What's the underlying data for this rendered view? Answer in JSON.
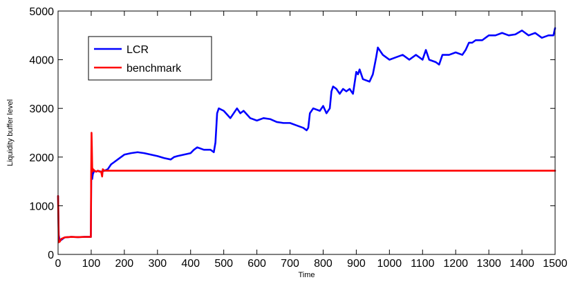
{
  "chart_data": {
    "type": "line",
    "title": "",
    "xlabel": "Time",
    "ylabel": "Liquidity buffer level",
    "xlim": [
      0,
      1500
    ],
    "ylim": [
      0,
      5000
    ],
    "xticks": [
      "0",
      "100",
      "200",
      "300",
      "400",
      "500",
      "600",
      "700",
      "800",
      "900",
      "1000",
      "1100",
      "1200",
      "1300",
      "1400",
      "1500"
    ],
    "yticks": [
      "0",
      "1000",
      "2000",
      "3000",
      "4000",
      "5000"
    ],
    "grid": false,
    "legend_position": "top-left",
    "series": [
      {
        "name": "LCR",
        "color": "#0000ff",
        "x": [
          0,
          2,
          5,
          10,
          20,
          40,
          60,
          80,
          99,
          100,
          101,
          102,
          103,
          105,
          108,
          110,
          115,
          120,
          130,
          140,
          150,
          160,
          170,
          180,
          190,
          200,
          220,
          240,
          260,
          280,
          300,
          320,
          340,
          350,
          360,
          380,
          400,
          410,
          420,
          440,
          460,
          470,
          475,
          480,
          485,
          500,
          520,
          540,
          550,
          560,
          580,
          600,
          620,
          640,
          660,
          680,
          700,
          720,
          740,
          750,
          755,
          760,
          770,
          790,
          800,
          810,
          820,
          825,
          830,
          840,
          850,
          860,
          870,
          880,
          890,
          900,
          905,
          910,
          920,
          940,
          950,
          960,
          965,
          970,
          980,
          1000,
          1020,
          1040,
          1060,
          1080,
          1100,
          1110,
          1120,
          1140,
          1150,
          1160,
          1180,
          1200,
          1220,
          1230,
          1240,
          1250,
          1260,
          1280,
          1290,
          1300,
          1320,
          1340,
          1360,
          1380,
          1400,
          1420,
          1440,
          1460,
          1480,
          1495,
          1500
        ],
        "y": [
          1200,
          400,
          280,
          300,
          350,
          360,
          355,
          360,
          360,
          1500,
          1800,
          1700,
          1550,
          1650,
          1700,
          1720,
          1700,
          1720,
          1700,
          1720,
          1750,
          1850,
          1900,
          1950,
          2000,
          2050,
          2080,
          2100,
          2080,
          2050,
          2020,
          1980,
          1950,
          2000,
          2020,
          2050,
          2080,
          2150,
          2200,
          2150,
          2150,
          2100,
          2300,
          2900,
          3000,
          2950,
          2800,
          3000,
          2900,
          2950,
          2800,
          2750,
          2800,
          2780,
          2720,
          2700,
          2700,
          2650,
          2600,
          2550,
          2600,
          2900,
          3000,
          2950,
          3050,
          2900,
          3000,
          3350,
          3450,
          3400,
          3300,
          3400,
          3350,
          3400,
          3300,
          3750,
          3700,
          3800,
          3600,
          3550,
          3700,
          4050,
          4250,
          4200,
          4100,
          4000,
          4050,
          4100,
          4000,
          4100,
          4000,
          4200,
          4000,
          3950,
          3900,
          4100,
          4100,
          4150,
          4100,
          4200,
          4350,
          4350,
          4400,
          4400,
          4450,
          4500,
          4500,
          4550,
          4500,
          4520,
          4600,
          4500,
          4550,
          4450,
          4500,
          4500,
          4650
        ]
      },
      {
        "name": "benchmark",
        "color": "#ff0000",
        "x": [
          0,
          2,
          5,
          10,
          20,
          40,
          60,
          80,
          99,
          100,
          101,
          102,
          103,
          104,
          106,
          110,
          115,
          120,
          125,
          130,
          133,
          135,
          140,
          150,
          200,
          500,
          1000,
          1500
        ],
        "y": [
          1200,
          250,
          260,
          320,
          350,
          360,
          355,
          360,
          360,
          1700,
          2500,
          2200,
          1800,
          1700,
          1750,
          1720,
          1700,
          1720,
          1700,
          1700,
          1600,
          1750,
          1720,
          1720,
          1720,
          1720,
          1720,
          1720
        ]
      }
    ]
  }
}
